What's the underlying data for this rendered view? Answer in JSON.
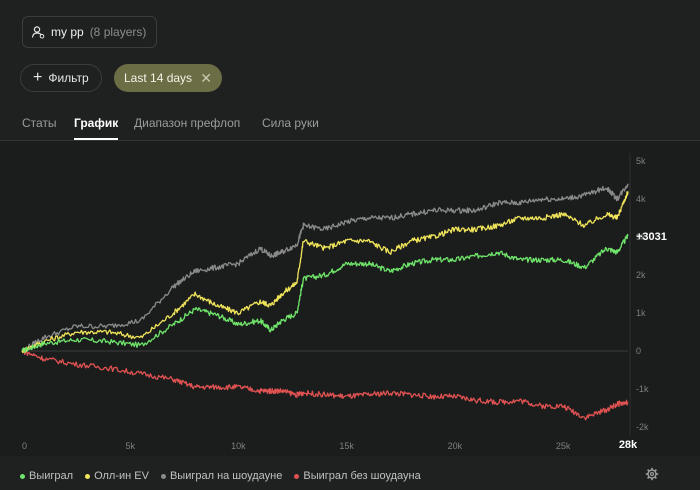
{
  "header": {
    "players_name": "my pp",
    "players_count": "(8 players)",
    "filter_label": "Фильтр",
    "chip_label": "Last 14 days",
    "chip_close": "✕"
  },
  "tabs": [
    {
      "label": "Статы"
    },
    {
      "label": "График"
    },
    {
      "label": "Диапазон префлоп"
    },
    {
      "label": "Сила руки"
    }
  ],
  "colors": {
    "won": "#6fe46a",
    "allin_ev": "#f0e45a",
    "showdown": "#8a8a8a",
    "non_showdown": "#e05252",
    "chip": "#6b6d45"
  },
  "chart_data": {
    "type": "line",
    "x_ticks": [
      "0",
      "5k",
      "10k",
      "15k",
      "20k",
      "25k",
      "28k"
    ],
    "y_ticks": [
      "5k",
      "4k",
      "3k",
      "2k",
      "1k",
      "0",
      "-1k",
      "-2k"
    ],
    "xlim": [
      0,
      28000
    ],
    "ylim": [
      -2000,
      5000
    ],
    "end_label": "+3031",
    "grid": false,
    "legend_position": "bottom-left",
    "series": [
      {
        "name": "Выиграл",
        "x": [
          0,
          1000,
          2500,
          4000,
          5500,
          7000,
          8000,
          9000,
          10000,
          11000,
          11500,
          12000,
          12700,
          13000,
          14000,
          15000,
          16000,
          17000,
          18000,
          19000,
          20000,
          21000,
          22000,
          23000,
          24000,
          25000,
          26000,
          27000,
          27500,
          28000
        ],
        "values": [
          0,
          200,
          300,
          250,
          150,
          700,
          1100,
          950,
          700,
          800,
          550,
          800,
          1000,
          1900,
          2000,
          2300,
          2300,
          2100,
          2300,
          2400,
          2400,
          2500,
          2600,
          2400,
          2400,
          2400,
          2200,
          2700,
          2600,
          3031
        ]
      },
      {
        "name": "Олл-ин EV",
        "x": [
          0,
          1000,
          2500,
          4000,
          5500,
          7000,
          8000,
          9000,
          10000,
          11000,
          11500,
          12000,
          12700,
          13000,
          14000,
          15000,
          16000,
          17000,
          18000,
          19000,
          20000,
          21000,
          22000,
          23000,
          24000,
          25000,
          26000,
          27000,
          27500,
          28000
        ],
        "values": [
          0,
          250,
          500,
          500,
          350,
          1000,
          1500,
          1200,
          1000,
          1300,
          1200,
          1500,
          1800,
          2900,
          2700,
          2900,
          2900,
          2600,
          2900,
          3000,
          3200,
          3200,
          3300,
          3500,
          3500,
          3600,
          3300,
          3600,
          3500,
          4200
        ]
      },
      {
        "name": "Выиграл на шоудауне",
        "x": [
          0,
          1000,
          2500,
          4000,
          5500,
          7000,
          8000,
          9000,
          10000,
          11000,
          11500,
          12000,
          12700,
          13000,
          14000,
          15000,
          16000,
          17000,
          18000,
          19000,
          20000,
          21000,
          22000,
          23000,
          24000,
          25000,
          26000,
          27000,
          27500,
          28000
        ],
        "values": [
          0,
          350,
          650,
          650,
          800,
          1700,
          2100,
          2200,
          2300,
          2700,
          2500,
          2600,
          2800,
          3300,
          3200,
          3400,
          3500,
          3500,
          3600,
          3700,
          3700,
          3700,
          3900,
          3900,
          4000,
          4000,
          4100,
          4300,
          4000,
          4400
        ]
      },
      {
        "name": "Выиграл без шоудауна",
        "x": [
          0,
          1000,
          2500,
          4000,
          5500,
          7000,
          8000,
          9000,
          10000,
          11000,
          11500,
          12000,
          12700,
          13000,
          14000,
          15000,
          16000,
          17000,
          18000,
          19000,
          20000,
          21000,
          22000,
          23000,
          24000,
          25000,
          26000,
          27000,
          27500,
          28000
        ],
        "values": [
          0,
          -200,
          -350,
          -450,
          -600,
          -750,
          -950,
          -950,
          -950,
          -1050,
          -1050,
          -1050,
          -1150,
          -1100,
          -1150,
          -1200,
          -1150,
          -1100,
          -1150,
          -1200,
          -1200,
          -1300,
          -1350,
          -1300,
          -1450,
          -1450,
          -1750,
          -1550,
          -1400,
          -1350
        ]
      }
    ]
  },
  "settings_icon": "gear-icon"
}
